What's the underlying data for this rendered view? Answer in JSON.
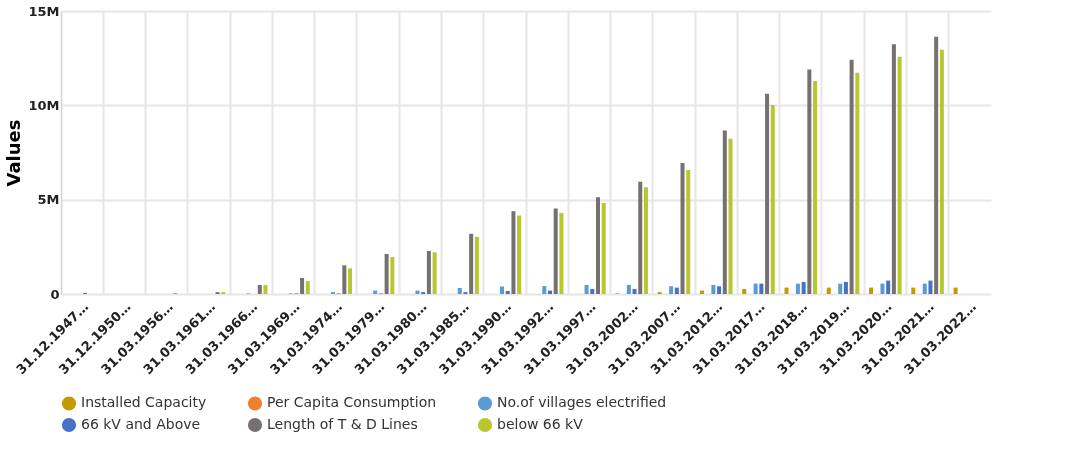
{
  "chart_data": {
    "type": "bar",
    "ylabel": "Values",
    "categories": [
      "31.12.1947…",
      "31.12.1950…",
      "31.03.1956…",
      "31.03.1961…",
      "31.03.1966…",
      "31.03.1969…",
      "31.03.1974…",
      "31.03.1979…",
      "31.03.1980…",
      "31.03.1985…",
      "31.03.1990…",
      "31.03.1992…",
      "31.03.1997…",
      "31.03.2002…",
      "31.03.2007…",
      "31.03.2012…",
      "31.03.2017…",
      "31.03.2018…",
      "31.03.2019…",
      "31.03.2020…",
      "31.03.2021…",
      "31.03.2022…"
    ],
    "series": [
      {
        "name": "Installed Capacity",
        "color": "#c49a00",
        "values": [
          0,
          0,
          0,
          0,
          0,
          0,
          0,
          0,
          0,
          0,
          0,
          0,
          0,
          30000.0,
          100000.0,
          180000.0,
          270000.0,
          340000.0,
          340000.0,
          340000.0,
          340000.0,
          340000.0
        ]
      },
      {
        "name": "Per Capita Consumption",
        "color": "#f07f30",
        "values": [
          0,
          0,
          0,
          0,
          0,
          0,
          0,
          0,
          0,
          0,
          0,
          0,
          0,
          0,
          0,
          0,
          0,
          0,
          0,
          0,
          0,
          null
        ]
      },
      {
        "name": "No.of villages electrified",
        "color": "#5b9bd5",
        "values": [
          0,
          0,
          0,
          0,
          30000.0,
          30000.0,
          100000.0,
          180000.0,
          180000.0,
          320000.0,
          400000.0,
          420000.0,
          480000.0,
          480000.0,
          410000.0,
          480000.0,
          550000.0,
          550000.0,
          550000.0,
          550000.0,
          550000.0,
          null
        ]
      },
      {
        "name": "66 kV and Above",
        "color": "#4472c4",
        "values": [
          50000.0,
          0,
          0,
          0,
          0,
          30000.0,
          30000.0,
          30000.0,
          100000.0,
          100000.0,
          160000.0,
          180000.0,
          270000.0,
          270000.0,
          340000.0,
          410000.0,
          550000.0,
          640000.0,
          640000.0,
          710000.0,
          710000.0,
          null
        ]
      },
      {
        "name": "Length of T & D Lines",
        "color": "#757171",
        "values": [
          0,
          0,
          30000.0,
          100000.0,
          480000.0,
          850000.0,
          1520000.0,
          2120000.0,
          2280000.0,
          3190000.0,
          4390000.0,
          4530000.0,
          5130000.0,
          5950000.0,
          6940000.0,
          8670000.0,
          10620000.0,
          11900000.0,
          12420000.0,
          13240000.0,
          13630000.0,
          null
        ]
      },
      {
        "name": "below 66 kV",
        "color": "#b8c72f",
        "values": [
          0,
          0,
          0,
          100000.0,
          480000.0,
          690000.0,
          1360000.0,
          1960000.0,
          2210000.0,
          3030000.0,
          4160000.0,
          4300000.0,
          4830000.0,
          5660000.0,
          6570000.0,
          8230000.0,
          10020000.0,
          11290000.0,
          11730000.0,
          12580000.0,
          12940000.0,
          null
        ]
      }
    ],
    "ylim": [
      0,
      15000000
    ],
    "yticks": [
      {
        "value": 0,
        "label": "0"
      },
      {
        "value": 5000000,
        "label": "5M"
      },
      {
        "value": 10000000,
        "label": "10M"
      },
      {
        "value": 15000000,
        "label": "15M"
      }
    ],
    "grid": true,
    "legend": "bottom"
  }
}
